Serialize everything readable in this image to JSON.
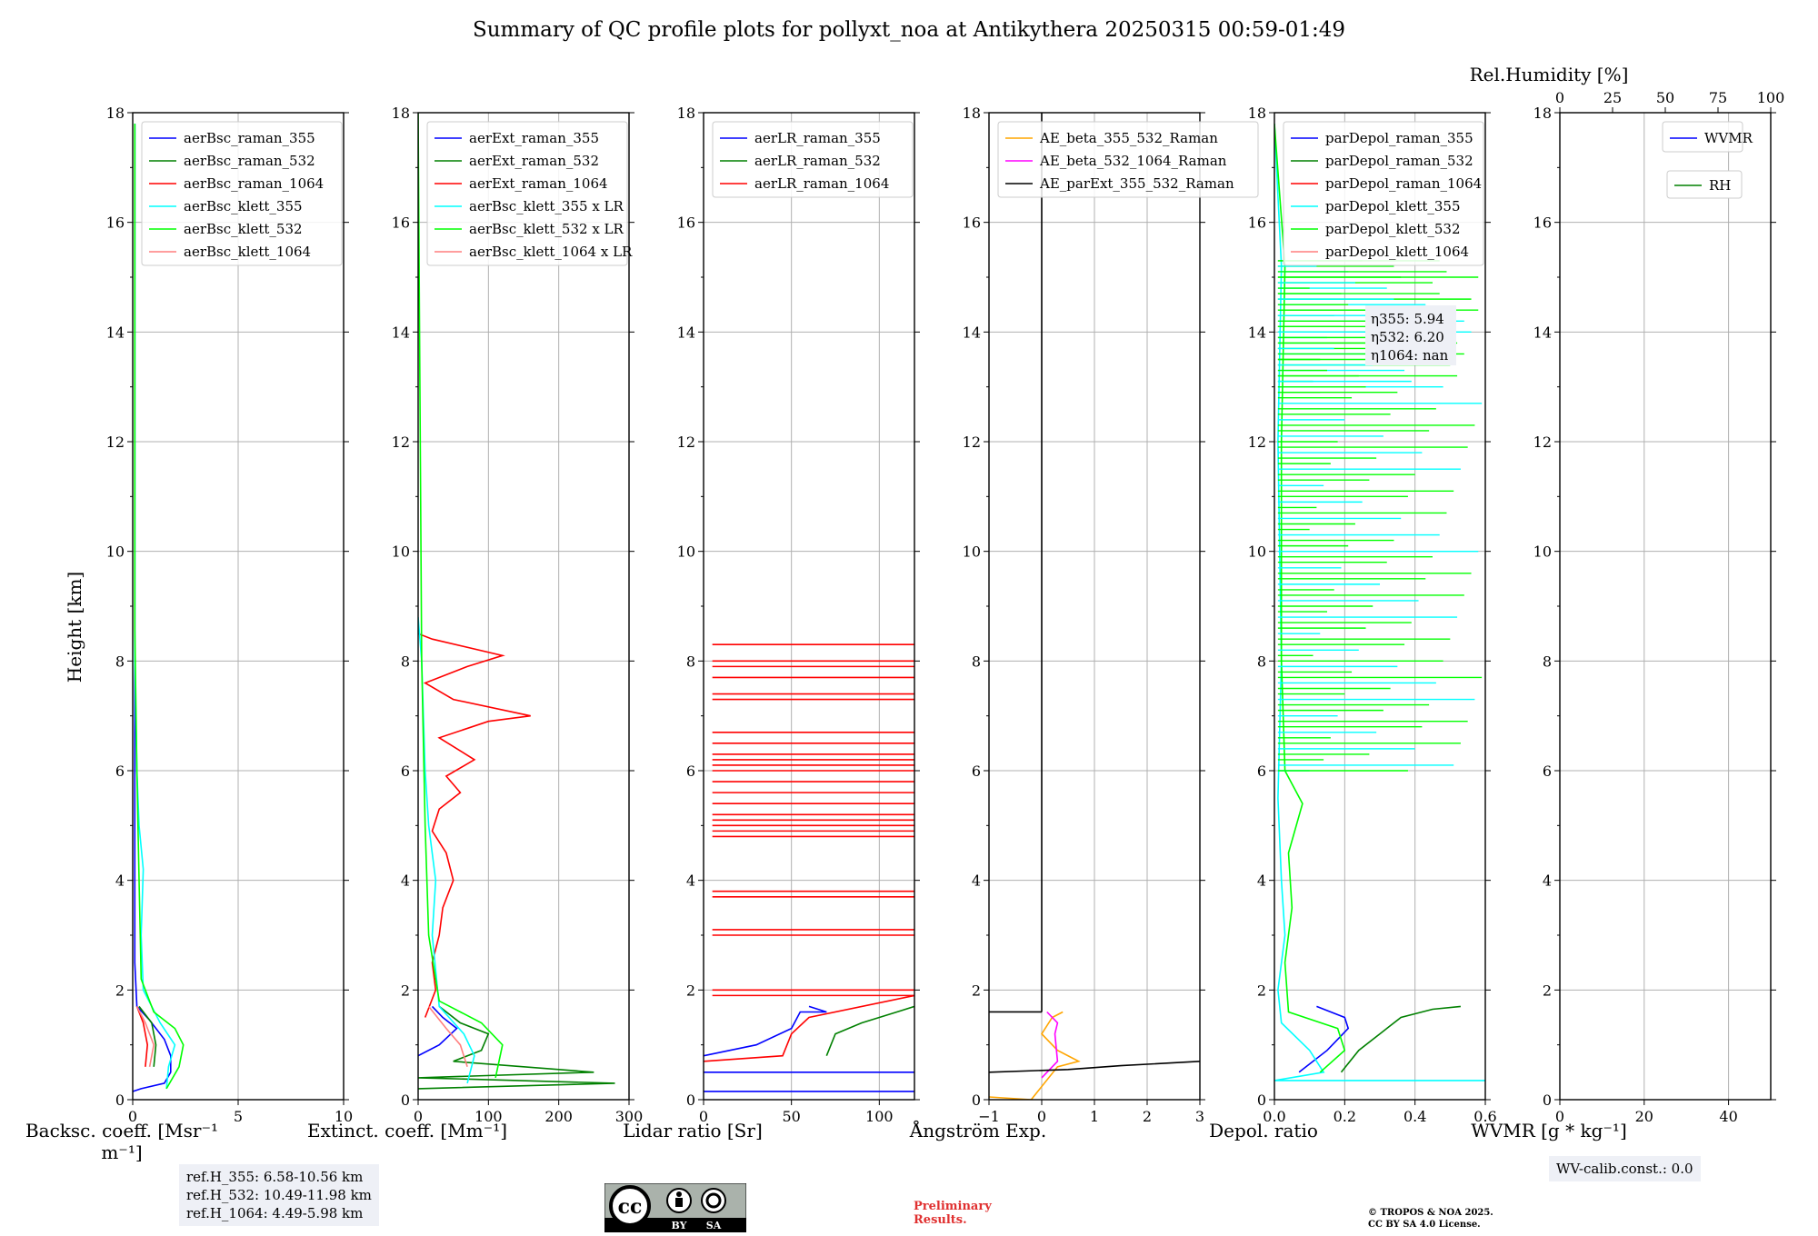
{
  "title": "Summary of QC profile plots for pollyxt_noa at Antikythera 20250315 00:59-01:49",
  "ylabel": "Height [km]",
  "colors": {
    "c355": "#0000ff",
    "c532": "#008000",
    "c1064": "#ff0000",
    "k355": "#00ffff",
    "k532": "#00ff00",
    "k1064": "#ff7f7f",
    "ae1": "#ffa500",
    "ae2": "#ff00ff",
    "ae3": "#000000"
  },
  "panels": [
    {
      "key": "bsc",
      "xlabel": "Backsc. coeff. [Msr⁻¹ m⁻¹]",
      "xticks": [
        "0",
        "5",
        "10"
      ],
      "legend": [
        "aerBsc_raman_355",
        "aerBsc_raman_532",
        "aerBsc_raman_1064",
        "aerBsc_klett_355",
        "aerBsc_klett_532",
        "aerBsc_klett_1064"
      ]
    },
    {
      "key": "ext",
      "xlabel": "Extinct. coeff. [Mm⁻¹]",
      "xticks": [
        "0",
        "100",
        "200",
        "300"
      ],
      "legend": [
        "aerExt_raman_355",
        "aerExt_raman_532",
        "aerExt_raman_1064",
        "aerBsc_klett_355 x LR",
        "aerBsc_klett_532 x LR",
        "aerBsc_klett_1064 x LR"
      ]
    },
    {
      "key": "lr",
      "xlabel": "Lidar ratio [Sr]",
      "xticks": [
        "0",
        "50",
        "100"
      ],
      "legend": [
        "aerLR_raman_355",
        "aerLR_raman_532",
        "aerLR_raman_1064"
      ]
    },
    {
      "key": "ae",
      "xlabel": "Ångström Exp.",
      "xticks": [
        "−1",
        "0",
        "1",
        "2",
        "3"
      ],
      "legend": [
        "AE_beta_355_532_Raman",
        "AE_beta_532_1064_Raman",
        "AE_parExt_355_532_Raman"
      ]
    },
    {
      "key": "dep",
      "xlabel": "Depol. ratio",
      "xticks": [
        "0.0",
        "0.2",
        "0.4",
        "0.6"
      ],
      "legend": [
        "parDepol_raman_355",
        "parDepol_raman_532",
        "parDepol_raman_1064",
        "parDepol_klett_355",
        "parDepol_klett_532",
        "parDepol_klett_1064"
      ]
    },
    {
      "key": "wv",
      "xlabel": "WVMR [g * kg⁻¹]",
      "xticks": [
        "0",
        "20",
        "40"
      ],
      "legend": [
        "WVMR"
      ],
      "legend2": [
        "RH"
      ],
      "top_label": "Rel.Humidity [%]",
      "top_ticks": [
        "0",
        "25",
        "50",
        "75",
        "100"
      ]
    }
  ],
  "yticks": [
    "0",
    "2",
    "4",
    "6",
    "8",
    "10",
    "12",
    "14",
    "16",
    "18"
  ],
  "ref_heights": [
    "ref.H_355: 6.58-10.56 km",
    "ref.H_532: 10.49-11.98 km",
    "ref.H_1064: 4.49-5.98 km"
  ],
  "eta": [
    "η355: 5.94",
    "η532: 6.20",
    "η1064: nan"
  ],
  "wv_calib": "WV-calib.const.: 0.0",
  "preliminary": [
    "Preliminary",
    "Results."
  ],
  "copyright": [
    "© TROPOS & NOA 2025.",
    "CC BY SA 4.0 License."
  ],
  "cc_badge": {
    "by": "BY",
    "sa": "SA"
  },
  "chart_data": [
    {
      "type": "line",
      "name": "backscatter",
      "xlim": [
        0,
        10
      ],
      "ylim": [
        0,
        18
      ],
      "grid": true,
      "legend": "top",
      "series": [
        {
          "name": "aerBsc_raman_355",
          "points": [
            [
              0.0,
              0.15
            ],
            [
              0.4,
              0.2
            ],
            [
              1.5,
              0.3
            ],
            [
              1.8,
              0.5
            ],
            [
              1.8,
              0.8
            ],
            [
              1.5,
              1.1
            ],
            [
              0.8,
              1.45
            ],
            [
              0.2,
              1.7
            ],
            [
              0.1,
              2.5
            ],
            [
              0.1,
              17.8
            ]
          ]
        },
        {
          "name": "aerBsc_raman_532",
          "points": [
            [
              1.0,
              0.6
            ],
            [
              1.1,
              1.0
            ],
            [
              0.9,
              1.4
            ],
            [
              0.3,
              1.7
            ]
          ]
        },
        {
          "name": "aerBsc_raman_1064",
          "points": [
            [
              0.6,
              0.6
            ],
            [
              0.7,
              1.0
            ],
            [
              0.5,
              1.4
            ],
            [
              0.2,
              1.7
            ]
          ]
        },
        {
          "name": "aerBsc_klett_355",
          "points": [
            [
              1.6,
              0.2
            ],
            [
              1.7,
              0.6
            ],
            [
              2.0,
              1.0
            ],
            [
              1.3,
              1.4
            ],
            [
              0.5,
              2.0
            ],
            [
              0.4,
              3
            ],
            [
              0.5,
              4.2
            ],
            [
              0.3,
              5
            ],
            [
              0.2,
              6
            ],
            [
              0.1,
              8
            ],
            [
              0.1,
              17.8
            ]
          ]
        },
        {
          "name": "aerBsc_klett_532",
          "points": [
            [
              1.6,
              0.2
            ],
            [
              2.2,
              0.6
            ],
            [
              2.4,
              1.0
            ],
            [
              2.0,
              1.3
            ],
            [
              1.0,
              1.6
            ],
            [
              0.4,
              2.2
            ],
            [
              0.3,
              4
            ],
            [
              0.2,
              6
            ],
            [
              0.1,
              8.6
            ],
            [
              0.1,
              17.8
            ]
          ]
        },
        {
          "name": "aerBsc_klett_1064",
          "points": [
            [
              0.8,
              0.6
            ],
            [
              1.0,
              1.0
            ],
            [
              0.6,
              1.4
            ],
            [
              0.2,
              1.7
            ]
          ]
        }
      ]
    },
    {
      "type": "line",
      "name": "extinction",
      "xlim": [
        0,
        300
      ],
      "ylim": [
        0,
        18
      ],
      "grid": true,
      "legend": "top",
      "series": [
        {
          "name": "aerExt_raman_355",
          "points": [
            [
              0,
              0.8
            ],
            [
              30,
              1.0
            ],
            [
              55,
              1.3
            ],
            [
              35,
              1.5
            ],
            [
              20,
              1.7
            ]
          ]
        },
        {
          "name": "aerExt_raman_532",
          "points": [
            [
              0,
              0.2
            ],
            [
              280,
              0.3
            ],
            [
              0,
              0.4
            ],
            [
              250,
              0.5
            ],
            [
              50,
              0.7
            ],
            [
              90,
              0.9
            ],
            [
              100,
              1.2
            ],
            [
              60,
              1.4
            ],
            [
              30,
              1.7
            ]
          ]
        },
        {
          "name": "aerExt_raman_1064",
          "points": [
            [
              10,
              1.5
            ],
            [
              25,
              2.0
            ],
            [
              20,
              2.5
            ],
            [
              30,
              3.0
            ],
            [
              35,
              3.5
            ],
            [
              50,
              4.0
            ],
            [
              40,
              4.5
            ],
            [
              20,
              4.9
            ],
            [
              30,
              5.3
            ],
            [
              60,
              5.6
            ],
            [
              40,
              5.9
            ],
            [
              80,
              6.2
            ],
            [
              30,
              6.6
            ],
            [
              100,
              6.9
            ],
            [
              160,
              7.0
            ],
            [
              50,
              7.3
            ],
            [
              10,
              7.6
            ],
            [
              70,
              7.9
            ],
            [
              120,
              8.1
            ],
            [
              20,
              8.4
            ],
            [
              0,
              8.5
            ]
          ]
        },
        {
          "name": "aerBsc_klett_355 x LR",
          "points": [
            [
              70,
              0.3
            ],
            [
              80,
              0.8
            ],
            [
              65,
              1.2
            ],
            [
              30,
              1.7
            ],
            [
              20,
              3
            ],
            [
              25,
              4
            ],
            [
              15,
              5
            ],
            [
              10,
              6
            ],
            [
              5,
              8
            ],
            [
              0,
              8.8
            ]
          ]
        },
        {
          "name": "aerBsc_klett_532 x LR",
          "points": [
            [
              110,
              0.4
            ],
            [
              120,
              1.0
            ],
            [
              90,
              1.4
            ],
            [
              30,
              1.8
            ],
            [
              15,
              3
            ],
            [
              10,
              5
            ],
            [
              5,
              8
            ],
            [
              0,
              18
            ]
          ]
        },
        {
          "name": "aerBsc_klett_1064 x LR",
          "points": [
            [
              70,
              0.6
            ],
            [
              60,
              1.0
            ],
            [
              40,
              1.3
            ],
            [
              15,
              1.7
            ]
          ]
        }
      ]
    },
    {
      "type": "line",
      "name": "lidar_ratio",
      "xlim": [
        0,
        120
      ],
      "ylim": [
        0,
        18
      ],
      "grid": true,
      "legend": "top",
      "series": [
        {
          "name": "aerLR_raman_355",
          "points": [
            [
              0,
              0.8
            ],
            [
              30,
              1.0
            ],
            [
              50,
              1.3
            ],
            [
              55,
              1.6
            ],
            [
              70,
              1.6
            ],
            [
              60,
              1.7
            ]
          ]
        },
        {
          "name": "aerLR_raman_532",
          "points": [
            [
              70,
              0.8
            ],
            [
              75,
              1.2
            ],
            [
              90,
              1.4
            ],
            [
              110,
              1.6
            ],
            [
              120,
              1.7
            ]
          ]
        },
        {
          "name": "aerLR_raman_1064",
          "points": [
            [
              0,
              0.7
            ],
            [
              45,
              0.8
            ],
            [
              50,
              1.2
            ],
            [
              60,
              1.5
            ],
            [
              120,
              1.9
            ]
          ]
        }
      ],
      "hlines_1064_km": [
        1.9,
        2.0,
        3.0,
        3.1,
        3.7,
        3.8,
        4.8,
        4.9,
        5.0,
        5.1,
        5.2,
        5.4,
        5.6,
        5.8,
        6.0,
        6.1,
        6.2,
        6.3,
        6.5,
        6.7,
        7.3,
        7.4,
        7.7,
        7.9,
        8.0,
        8.3
      ],
      "hlines_355_km": [
        0.15,
        0.5
      ]
    },
    {
      "type": "line",
      "name": "angstrom",
      "xlim": [
        -1,
        3
      ],
      "ylim": [
        0,
        18
      ],
      "grid": true,
      "legend": "top",
      "series": [
        {
          "name": "AE_beta_355_532_Raman",
          "points": [
            [
              -1,
              0.05
            ],
            [
              -0.2,
              0.0
            ],
            [
              0.3,
              0.6
            ],
            [
              0.7,
              0.7
            ],
            [
              0.3,
              0.9
            ],
            [
              0.0,
              1.2
            ],
            [
              0.2,
              1.5
            ],
            [
              0.4,
              1.6
            ]
          ]
        },
        {
          "name": "AE_beta_532_1064_Raman",
          "points": [
            [
              0,
              0.4
            ],
            [
              0.2,
              0.6
            ],
            [
              0.3,
              0.7
            ],
            [
              0.25,
              1.2
            ],
            [
              0.3,
              1.4
            ],
            [
              0.1,
              1.6
            ]
          ]
        },
        {
          "name": "AE_parExt_355_532_Raman",
          "points": [
            [
              -1,
              0.5
            ],
            [
              0.5,
              0.55
            ],
            [
              1.5,
              0.62
            ],
            [
              3,
              0.7
            ]
          ]
        }
      ]
    },
    {
      "type": "line",
      "name": "depolarization",
      "xlim": [
        0,
        0.6
      ],
      "ylim": [
        0,
        18
      ],
      "grid": true,
      "legend": "top",
      "series": [
        {
          "name": "parDepol_raman_355",
          "points": [
            [
              0.07,
              0.5
            ],
            [
              0.15,
              0.9
            ],
            [
              0.21,
              1.3
            ],
            [
              0.2,
              1.5
            ],
            [
              0.12,
              1.7
            ]
          ]
        },
        {
          "name": "parDepol_raman_532",
          "points": [
            [
              0.19,
              0.5
            ],
            [
              0.24,
              0.9
            ],
            [
              0.3,
              1.2
            ],
            [
              0.36,
              1.5
            ],
            [
              0.45,
              1.65
            ],
            [
              0.53,
              1.7
            ]
          ]
        },
        {
          "name": "parDepol_klett_355",
          "points": [
            [
              0.6,
              0.35
            ],
            [
              0.0,
              0.35
            ],
            [
              0.14,
              0.5
            ],
            [
              0.1,
              0.9
            ],
            [
              0.02,
              1.4
            ],
            [
              0.01,
              2.0
            ],
            [
              0.03,
              3
            ],
            [
              0.02,
              4
            ],
            [
              0.01,
              5.5
            ],
            [
              0.02,
              8
            ],
            [
              0.01,
              12
            ],
            [
              0.02,
              15.2
            ],
            [
              0.0,
              17.8
            ]
          ]
        },
        {
          "name": "parDepol_klett_532",
          "points": [
            [
              0.13,
              0.5
            ],
            [
              0.2,
              0.9
            ],
            [
              0.18,
              1.3
            ],
            [
              0.04,
              1.6
            ],
            [
              0.03,
              2.5
            ],
            [
              0.05,
              3.5
            ],
            [
              0.04,
              4.5
            ],
            [
              0.08,
              5.4
            ],
            [
              0.03,
              6
            ],
            [
              0.02,
              8
            ],
            [
              0.02,
              12
            ],
            [
              0.03,
              15.2
            ],
            [
              0.0,
              17.8
            ]
          ]
        }
      ]
    },
    {
      "type": "line",
      "name": "water_vapour",
      "xlim": [
        0,
        50
      ],
      "ylim": [
        0,
        18
      ],
      "grid": true,
      "legend": "top-right",
      "series": []
    }
  ]
}
